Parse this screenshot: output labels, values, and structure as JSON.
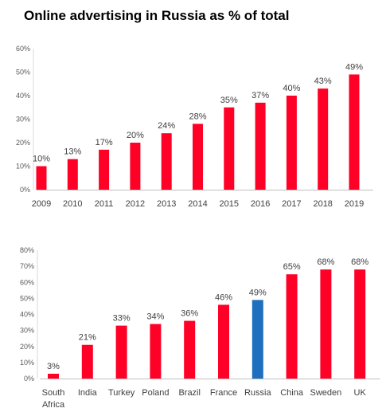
{
  "title": "Online advertising in Russia as % of total",
  "chart_data": [
    {
      "type": "bar",
      "categories": [
        "2009",
        "2010",
        "2011",
        "2012",
        "2013",
        "2014",
        "2015",
        "2016",
        "2017",
        "2018",
        "2019"
      ],
      "values": [
        10,
        13,
        17,
        20,
        24,
        28,
        35,
        37,
        40,
        43,
        49
      ],
      "data_labels": [
        "10%",
        "13%",
        "17%",
        "20%",
        "24%",
        "28%",
        "35%",
        "37%",
        "40%",
        "43%",
        "49%"
      ],
      "ylim": [
        0,
        60
      ],
      "yticks": [
        0,
        10,
        20,
        30,
        40,
        50,
        60
      ],
      "ytick_labels": [
        "0%",
        "10%",
        "20%",
        "30%",
        "40%",
        "50%",
        "60%"
      ],
      "bar_colors": [
        "#FF0026",
        "#FF0026",
        "#FF0026",
        "#FF0026",
        "#FF0026",
        "#FF0026",
        "#FF0026",
        "#FF0026",
        "#FF0026",
        "#FF0026",
        "#FF0026"
      ],
      "grid": false,
      "legend": "none"
    },
    {
      "type": "bar",
      "categories": [
        "South Africa",
        "India",
        "Turkey",
        "Poland",
        "Brazil",
        "France",
        "Russia",
        "China",
        "Sweden",
        "UK"
      ],
      "category_lines": [
        [
          "South",
          "Africa"
        ],
        [
          "India"
        ],
        [
          "Turkey"
        ],
        [
          "Poland"
        ],
        [
          "Brazil"
        ],
        [
          "France"
        ],
        [
          "Russia"
        ],
        [
          "China"
        ],
        [
          "Sweden"
        ],
        [
          "UK"
        ]
      ],
      "values": [
        3,
        21,
        33,
        34,
        36,
        46,
        49,
        65,
        68,
        68
      ],
      "data_labels": [
        "3%",
        "21%",
        "33%",
        "34%",
        "36%",
        "46%",
        "49%",
        "65%",
        "68%",
        "68%"
      ],
      "ylim": [
        0,
        80
      ],
      "yticks": [
        0,
        10,
        20,
        30,
        40,
        50,
        60,
        70,
        80
      ],
      "ytick_labels": [
        "0%",
        "10%",
        "20%",
        "30%",
        "40%",
        "50%",
        "60%",
        "70%",
        "80%"
      ],
      "bar_colors": [
        "#FF0026",
        "#FF0026",
        "#FF0026",
        "#FF0026",
        "#FF0026",
        "#FF0026",
        "#1F6FBF",
        "#FF0026",
        "#FF0026",
        "#FF0026"
      ],
      "grid": false,
      "legend": "none"
    }
  ]
}
